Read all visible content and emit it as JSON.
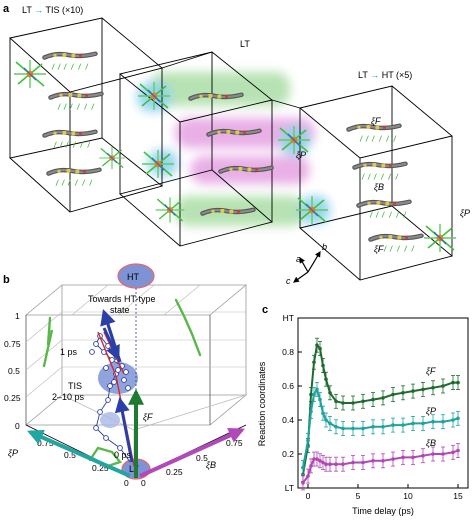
{
  "panel_a": {
    "label": "a",
    "title_left": "LT → TIS (×10)",
    "title_left_a": "LT ",
    "title_left_arrow": "→",
    "title_left_b": " TIS (×10)",
    "title_mid": "LT",
    "title_right_a": "LT ",
    "title_right_arrow": "→",
    "title_right_b": " HT (×5)",
    "xi_F_1": "ξF",
    "xi_P": "ξP",
    "xi_B": "ξB",
    "xi_F_2": "ξF",
    "xi_P_edge": "ξP",
    "axis_a": "a",
    "axis_b": "b",
    "axis_c": "c"
  },
  "panel_b": {
    "label": "b",
    "ht_label": "HT",
    "lt_label": "LT",
    "towards_1": "Towards HT-type",
    "towards_2": "state",
    "ps1": "1 ps",
    "tis_1": "TIS",
    "tis_2": "2–10 ps",
    "ps0": "0 ps",
    "xi_F": "ξF",
    "xi_P": "ξP",
    "xi_B": "ξB",
    "ticks_vertical": [
      "1",
      "0.75",
      "0.5",
      "0.25",
      "0"
    ],
    "ticks_p": [
      "0.75",
      "0.5",
      "0.25",
      "0"
    ],
    "ticks_b": [
      "0.25",
      "0.5",
      "0.75"
    ],
    "tick_zero_b": "0"
  },
  "panel_c": {
    "label": "c",
    "colors": {
      "xi_F": "#1e6b2e",
      "xi_P": "#1fa3a0",
      "xi_B": "#b146b5"
    },
    "chart_data": {
      "type": "scatter",
      "xlabel": "Time delay (ps)",
      "ylabel": "Reaction coordinates",
      "xlim": [
        -1,
        16
      ],
      "ylim": [
        0,
        1
      ],
      "x_ticks": [
        "0",
        "5",
        "10",
        "15"
      ],
      "y_ticks": [
        "LT",
        "0.2",
        "0.4",
        "0.6",
        "0.8",
        "HT"
      ],
      "series": [
        {
          "name": "ξF",
          "x": [
            -0.5,
            0,
            0.3,
            0.6,
            0.9,
            1.2,
            1.5,
            1.8,
            2.2,
            2.8,
            3.5,
            4.5,
            5.5,
            6.5,
            7.5,
            8.5,
            9.5,
            10.5,
            11.5,
            12.5,
            13.5,
            14.5,
            15
          ],
          "y": [
            0.08,
            0.25,
            0.55,
            0.74,
            0.84,
            0.82,
            0.72,
            0.64,
            0.56,
            0.51,
            0.5,
            0.5,
            0.51,
            0.52,
            0.53,
            0.55,
            0.56,
            0.57,
            0.58,
            0.59,
            0.6,
            0.62,
            0.62
          ]
        },
        {
          "name": "ξP",
          "x": [
            -0.5,
            0,
            0.3,
            0.6,
            0.9,
            1.2,
            1.5,
            1.8,
            2.2,
            2.8,
            3.5,
            4.5,
            5.5,
            6.5,
            7.5,
            8.5,
            9.5,
            10.5,
            11.5,
            12.5,
            13.5,
            14.5,
            15
          ],
          "y": [
            0.12,
            0.28,
            0.45,
            0.55,
            0.58,
            0.52,
            0.44,
            0.4,
            0.38,
            0.36,
            0.35,
            0.35,
            0.35,
            0.36,
            0.36,
            0.37,
            0.37,
            0.38,
            0.38,
            0.39,
            0.39,
            0.4,
            0.41
          ]
        },
        {
          "name": "ξB",
          "x": [
            -0.5,
            0,
            0.3,
            0.6,
            0.9,
            1.2,
            1.5,
            1.8,
            2.2,
            2.8,
            3.5,
            4.5,
            5.5,
            6.5,
            7.5,
            8.5,
            9.5,
            10.5,
            11.5,
            12.5,
            13.5,
            14.5,
            15
          ],
          "y": [
            0.03,
            0.07,
            0.13,
            0.17,
            0.17,
            0.16,
            0.15,
            0.14,
            0.14,
            0.14,
            0.14,
            0.15,
            0.15,
            0.16,
            0.16,
            0.17,
            0.18,
            0.18,
            0.19,
            0.2,
            0.2,
            0.21,
            0.22
          ]
        }
      ]
    }
  }
}
